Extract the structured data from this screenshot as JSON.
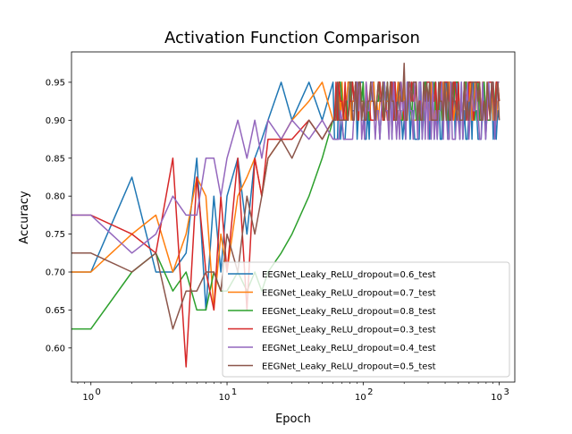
{
  "chart_data": {
    "type": "line",
    "title": "Activation Function Comparison",
    "xlabel": "Epoch",
    "ylabel": "Accuracy",
    "xscale": "log",
    "xlim": [
      0.72,
      1300
    ],
    "ylim": [
      0.555,
      0.99
    ],
    "x_ticks": [
      {
        "value": 1,
        "label": "10",
        "exp": "0"
      },
      {
        "value": 10,
        "label": "10",
        "exp": "1"
      },
      {
        "value": 100,
        "label": "10",
        "exp": "2"
      },
      {
        "value": 1000,
        "label": "10",
        "exp": "3"
      }
    ],
    "y_ticks": [
      0.6,
      0.65,
      0.7,
      0.75,
      0.8,
      0.85,
      0.9,
      0.95
    ],
    "y_tick_labels": [
      "0.60",
      "0.65",
      "0.70",
      "0.75",
      "0.80",
      "0.85",
      "0.90",
      "0.95"
    ],
    "legend_position": "lower right",
    "grid": false,
    "x": [
      0,
      1,
      2,
      3,
      4,
      5,
      6,
      7,
      8,
      9,
      10,
      12,
      14,
      16,
      18,
      20,
      25,
      30,
      40,
      50,
      60,
      70,
      100,
      200,
      500,
      1000
    ],
    "series": [
      {
        "name": "EEGNet_Leaky_ReLU_dropout=0.6_test",
        "color": "#1f77b4",
        "values": [
          0.7,
          0.7,
          0.825,
          0.7,
          0.7,
          0.725,
          0.85,
          0.65,
          0.8,
          0.7,
          0.8,
          0.85,
          0.75,
          0.85,
          0.875,
          0.9,
          0.95,
          0.9,
          0.95,
          0.9,
          0.95,
          0.9,
          0.95,
          0.9,
          0.95,
          0.9
        ],
        "band": [
          0.875,
          0.95
        ]
      },
      {
        "name": "EEGNet_Leaky_ReLU_dropout=0.7_test",
        "color": "#ff7f0e",
        "values": [
          0.7,
          0.7,
          0.75,
          0.775,
          0.7,
          0.75,
          0.825,
          0.8,
          0.65,
          0.75,
          0.7,
          0.8,
          0.825,
          0.85,
          0.8,
          0.85,
          0.875,
          0.9,
          0.925,
          0.95,
          0.9,
          0.95,
          0.925,
          0.95,
          0.9,
          0.925
        ],
        "band": [
          0.9,
          0.95
        ]
      },
      {
        "name": "EEGNet_Leaky_ReLU_dropout=0.8_test",
        "color": "#2ca02c",
        "values": [
          0.625,
          0.625,
          0.7,
          0.725,
          0.675,
          0.7,
          0.65,
          0.65,
          0.7,
          0.675,
          0.675,
          0.7,
          0.675,
          0.7,
          0.675,
          0.7,
          0.725,
          0.75,
          0.8,
          0.85,
          0.9,
          0.925,
          0.95,
          0.925,
          0.95,
          0.925
        ],
        "band": [
          0.9,
          0.95
        ]
      },
      {
        "name": "EEGNet_Leaky_ReLU_dropout=0.3_test",
        "color": "#d62728",
        "values": [
          0.775,
          0.775,
          0.75,
          0.725,
          0.85,
          0.575,
          0.825,
          0.7,
          0.65,
          0.8,
          0.7,
          0.85,
          0.65,
          0.85,
          0.8,
          0.875,
          0.875,
          0.875,
          0.9,
          0.875,
          0.9,
          0.925,
          0.925,
          0.9,
          0.95,
          0.925
        ],
        "band": [
          0.9,
          0.95
        ]
      },
      {
        "name": "EEGNet_Leaky_ReLU_dropout=0.4_test",
        "color": "#9467bd",
        "values": [
          0.775,
          0.775,
          0.725,
          0.75,
          0.8,
          0.775,
          0.775,
          0.85,
          0.85,
          0.8,
          0.85,
          0.9,
          0.85,
          0.9,
          0.85,
          0.9,
          0.875,
          0.9,
          0.875,
          0.9,
          0.875,
          0.9,
          0.9,
          0.925,
          0.9,
          0.95
        ],
        "band": [
          0.875,
          0.95
        ]
      },
      {
        "name": "EEGNet_Leaky_ReLU_dropout=0.5_test",
        "color": "#8c564b",
        "values": [
          0.725,
          0.725,
          0.7,
          0.725,
          0.625,
          0.675,
          0.675,
          0.7,
          0.7,
          0.675,
          0.75,
          0.7,
          0.8,
          0.75,
          0.8,
          0.85,
          0.875,
          0.85,
          0.9,
          0.875,
          0.9,
          0.9,
          0.925,
          0.975,
          0.925,
          0.9
        ],
        "band": [
          0.9,
          0.95
        ]
      }
    ]
  }
}
